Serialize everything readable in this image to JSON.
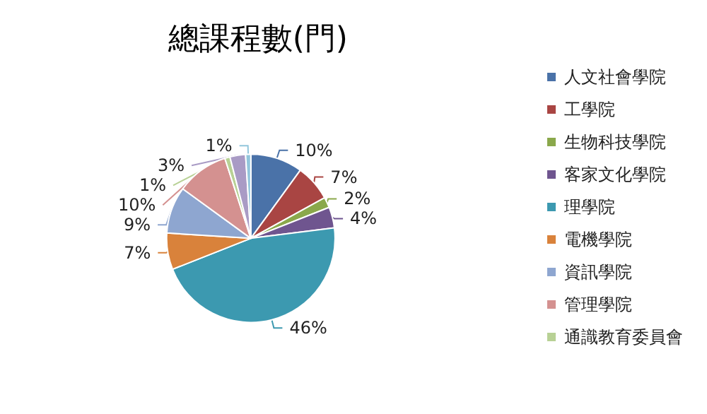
{
  "chart_data": {
    "type": "pie",
    "title": "總課程數(門)",
    "categories": [
      "人文社會學院",
      "工學院",
      "生物科技學院",
      "客家文化學院",
      "理學院",
      "電機學院",
      "資訊學院",
      "管理學院",
      "通識教育委員會",
      null,
      null
    ],
    "values": [
      10,
      7,
      2,
      4,
      46,
      7,
      9,
      10,
      1,
      3,
      1
    ],
    "value_labels": [
      "10%",
      "7%",
      "2%",
      "4%",
      "46%",
      "7%",
      "9%",
      "10%",
      "1%",
      "3%",
      "1%"
    ],
    "colors": [
      "#4a72a8",
      "#a94543",
      "#8aa84b",
      "#6f558f",
      "#3c99b0",
      "#d9823b",
      "#8ea6d0",
      "#d49190",
      "#b8d195",
      "#a99bc5",
      "#92c6dc"
    ],
    "legend": "right"
  }
}
